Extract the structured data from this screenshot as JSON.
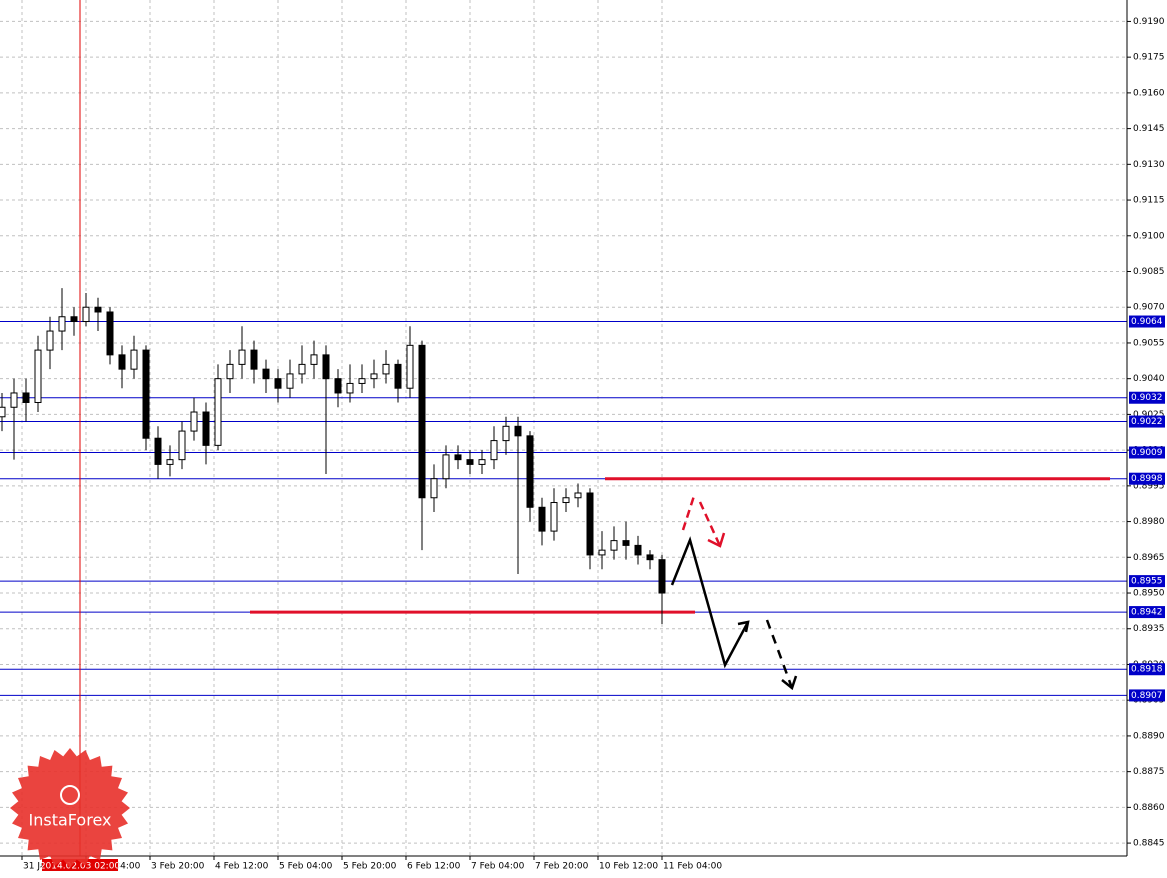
{
  "chart_data": {
    "type": "candlestick",
    "xlim": [
      -0.5,
      281.25
    ],
    "ylim": [
      0.884,
      0.9199
    ],
    "yticks": [
      0.8845,
      {
        "value": 0.886,
        "label": "0.8860"
      },
      0.8875,
      {
        "value": 0.889,
        "label": "0.8890"
      },
      {
        "value": 0.8905,
        "label": "0.8905"
      },
      {
        "value": 0.892,
        "label": "0.8920"
      },
      0.8935,
      {
        "value": 0.895,
        "label": "0.8950"
      },
      0.8965,
      {
        "value": 0.898,
        "label": "0.8980"
      },
      0.8995,
      {
        "value": 0.901,
        "label": "0.9010"
      },
      0.9025,
      {
        "value": 0.904,
        "label": "0.9040"
      },
      0.9055,
      {
        "value": 0.907,
        "label": "0.9070"
      },
      0.9085,
      {
        "value": 0.91,
        "label": "0.9100"
      },
      0.9115,
      {
        "value": 0.913,
        "label": "0.9130"
      },
      0.9145,
      {
        "value": 0.916,
        "label": "0.9160"
      },
      0.9175,
      {
        "value": 0.919,
        "label": "0.9190"
      }
    ],
    "xticks": [
      {
        "value": 5,
        "label": "31 Jan 12:00"
      },
      {
        "value": 21,
        "label": "3 Feb 04:00"
      },
      {
        "value": 37,
        "label": "3 Feb 20:00"
      },
      {
        "value": 53,
        "label": "4 Feb 12:00"
      },
      {
        "value": 69,
        "label": "5 Feb 04:00"
      },
      {
        "value": 85,
        "label": "5 Feb 20:00"
      },
      {
        "value": 101,
        "label": "6 Feb 12:00"
      },
      {
        "value": 117,
        "label": "7 Feb 04:00"
      },
      {
        "value": 133,
        "label": "7 Feb 20:00"
      },
      {
        "value": 149,
        "label": "10 Feb 12:00"
      },
      {
        "value": 165,
        "label": "11 Feb 04:00"
      }
    ],
    "grid": true,
    "x": [
      0,
      3,
      6,
      9,
      12,
      15,
      18,
      21,
      24,
      27,
      30,
      33,
      36,
      39,
      42,
      45,
      48,
      51,
      54,
      57,
      60,
      63,
      66,
      69,
      72,
      75,
      78,
      81,
      84,
      87,
      90,
      93,
      96,
      99,
      102,
      105,
      108,
      111,
      114,
      117,
      120,
      123,
      126,
      129,
      132,
      135,
      138,
      141,
      144,
      147,
      150,
      153,
      156,
      159,
      162,
      165
    ],
    "open": [
      0.9024,
      0.9028,
      0.9034,
      0.903,
      0.9052,
      0.906,
      0.9066,
      0.9064,
      0.907,
      0.9068,
      0.905,
      0.9044,
      0.9052,
      0.9015,
      0.9004,
      0.9006,
      0.9018,
      0.9026,
      0.9012,
      0.904,
      0.9046,
      0.9052,
      0.9044,
      0.904,
      0.9036,
      0.9042,
      0.9046,
      0.905,
      0.904,
      0.9034,
      0.9038,
      0.904,
      0.9042,
      0.9046,
      0.9036,
      0.9054,
      0.899,
      0.8998,
      0.9008,
      0.9006,
      0.9004,
      0.9006,
      0.9014,
      0.902,
      0.9016,
      0.8986,
      0.8976,
      0.8988,
      0.899,
      0.8992,
      0.8966,
      0.8968,
      0.8972,
      0.897,
      0.8966,
      0.8964
    ],
    "high": [
      0.9034,
      0.904,
      0.904,
      0.9058,
      0.9066,
      0.9078,
      0.907,
      0.9076,
      0.9074,
      0.907,
      0.9054,
      0.9058,
      0.9054,
      0.902,
      0.9012,
      0.9022,
      0.9032,
      0.903,
      0.9046,
      0.9052,
      0.9062,
      0.9056,
      0.9048,
      0.9044,
      0.9048,
      0.9054,
      0.9056,
      0.9054,
      0.9044,
      0.9046,
      0.9046,
      0.9048,
      0.9052,
      0.9048,
      0.9062,
      0.9056,
      0.9004,
      0.9012,
      0.9012,
      0.901,
      0.901,
      0.902,
      0.9024,
      0.9024,
      0.9018,
      0.899,
      0.8994,
      0.8994,
      0.8996,
      0.8994,
      0.8976,
      0.8978,
      0.898,
      0.8974,
      0.8968,
      0.8966
    ],
    "low": [
      0.9018,
      0.9006,
      0.9022,
      0.9026,
      0.9044,
      0.9052,
      0.9058,
      0.9062,
      0.906,
      0.9046,
      0.9036,
      0.904,
      0.901,
      0.8998,
      0.8999,
      0.9002,
      0.9014,
      0.9004,
      0.901,
      0.9034,
      0.904,
      0.9038,
      0.9034,
      0.903,
      0.9032,
      0.9038,
      0.904,
      0.9,
      0.9028,
      0.903,
      0.9034,
      0.9036,
      0.9038,
      0.903,
      0.9032,
      0.8968,
      0.8984,
      0.8994,
      0.9002,
      0.9,
      0.9,
      0.9002,
      0.9008,
      0.8958,
      0.898,
      0.897,
      0.8972,
      0.8984,
      0.8986,
      0.896,
      0.896,
      0.8964,
      0.8964,
      0.8962,
      0.896,
      0.8937
    ],
    "close": [
      0.9028,
      0.9034,
      0.903,
      0.9052,
      0.906,
      0.9066,
      0.9064,
      0.907,
      0.9068,
      0.905,
      0.9044,
      0.9052,
      0.9015,
      0.9004,
      0.9006,
      0.9018,
      0.9026,
      0.9012,
      0.904,
      0.9046,
      0.9052,
      0.9044,
      0.904,
      0.9036,
      0.9042,
      0.9046,
      0.905,
      0.904,
      0.9034,
      0.9038,
      0.904,
      0.9042,
      0.9046,
      0.9036,
      0.9054,
      0.899,
      0.8998,
      0.9008,
      0.9006,
      0.9004,
      0.9006,
      0.9014,
      0.902,
      0.9016,
      0.8986,
      0.8976,
      0.8988,
      0.899,
      0.8992,
      0.8966,
      0.8968,
      0.8972,
      0.897,
      0.8966,
      0.8964,
      0.895
    ],
    "levels": [
      0.9064,
      0.9032,
      0.9022,
      0.9009,
      0.8998,
      0.8955,
      0.8942,
      0.8918,
      0.8907
    ],
    "level_color": "#0000c8",
    "segments": [
      {
        "x": [
          150.75,
          277
        ],
        "y": 0.8998,
        "color": "#e0102a"
      },
      {
        "x": [
          62,
          173.25
        ],
        "y": 0.8942,
        "color": "#e0102a"
      }
    ],
    "marker": {
      "x": 19.5,
      "label": "2014.02.03 02:00",
      "color": "#e00000"
    },
    "watermark": "InstaForex"
  }
}
